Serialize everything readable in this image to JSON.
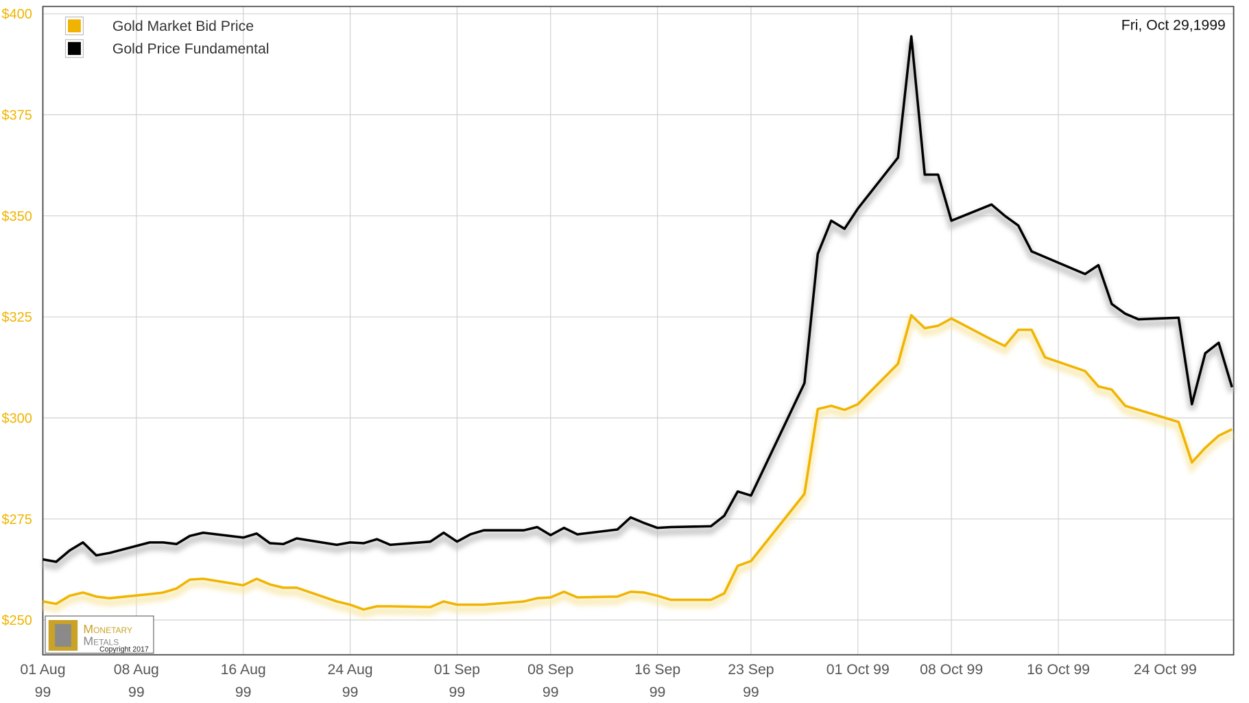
{
  "chart_data": {
    "type": "line",
    "annotation": "Fri, Oct 29,1999",
    "x": [
      "1999-08-01",
      "1999-08-02",
      "1999-08-03",
      "1999-08-04",
      "1999-08-05",
      "1999-08-06",
      "1999-08-09",
      "1999-08-10",
      "1999-08-11",
      "1999-08-12",
      "1999-08-13",
      "1999-08-16",
      "1999-08-17",
      "1999-08-18",
      "1999-08-19",
      "1999-08-20",
      "1999-08-23",
      "1999-08-24",
      "1999-08-25",
      "1999-08-26",
      "1999-08-27",
      "1999-08-30",
      "1999-08-31",
      "1999-09-01",
      "1999-09-02",
      "1999-09-03",
      "1999-09-06",
      "1999-09-07",
      "1999-09-08",
      "1999-09-09",
      "1999-09-10",
      "1999-09-13",
      "1999-09-14",
      "1999-09-15",
      "1999-09-16",
      "1999-09-17",
      "1999-09-20",
      "1999-09-21",
      "1999-09-22",
      "1999-09-23",
      "1999-09-27",
      "1999-09-28",
      "1999-09-29",
      "1999-09-30",
      "1999-10-01",
      "1999-10-04",
      "1999-10-05",
      "1999-10-06",
      "1999-10-07",
      "1999-10-08",
      "1999-10-11",
      "1999-10-12",
      "1999-10-13",
      "1999-10-14",
      "1999-10-15",
      "1999-10-18",
      "1999-10-19",
      "1999-10-20",
      "1999-10-21",
      "1999-10-22",
      "1999-10-25",
      "1999-10-26",
      "1999-10-27",
      "1999-10-28",
      "1999-10-29"
    ],
    "series": [
      {
        "name": "Gold Market Bid Price",
        "color": "#f0b400",
        "values": [
          254.6,
          254.0,
          256.0,
          256.8,
          255.8,
          255.4,
          256.4,
          256.8,
          257.8,
          260.0,
          260.2,
          258.6,
          260.2,
          258.8,
          258.0,
          258.0,
          254.6,
          253.8,
          252.6,
          253.4,
          253.4,
          253.2,
          254.6,
          253.8,
          253.8,
          253.8,
          254.6,
          255.4,
          255.6,
          257.0,
          255.6,
          255.8,
          257.0,
          256.8,
          256.0,
          255.0,
          255.0,
          256.6,
          263.4,
          264.6,
          281.2,
          302.2,
          303.0,
          302.0,
          303.4,
          313.4,
          325.4,
          322.2,
          322.8,
          324.6,
          319.4,
          317.8,
          321.8,
          321.8,
          315.0,
          311.6,
          307.8,
          307.0,
          303.0,
          302.0,
          299.0,
          289.0,
          292.6,
          295.6,
          297.2
        ]
      },
      {
        "name": "Gold Price Fundamental",
        "color": "#000000",
        "values": [
          265.0,
          264.4,
          267.2,
          269.2,
          266.0,
          266.6,
          269.2,
          269.2,
          268.8,
          270.8,
          271.6,
          270.4,
          271.4,
          269.0,
          268.8,
          270.2,
          268.6,
          269.2,
          269.0,
          270.0,
          268.6,
          269.4,
          271.6,
          269.4,
          271.2,
          272.2,
          272.2,
          273.0,
          271.0,
          272.8,
          271.2,
          272.4,
          275.4,
          274.0,
          272.8,
          273.0,
          273.2,
          275.8,
          281.8,
          280.8,
          308.6,
          340.6,
          348.8,
          346.8,
          351.8,
          364.4,
          394.4,
          360.2,
          360.2,
          348.8,
          352.8,
          350.0,
          347.6,
          341.2,
          339.8,
          335.6,
          337.8,
          328.2,
          325.8,
          324.4,
          324.8,
          303.4,
          316.0,
          318.6,
          307.6
        ]
      }
    ],
    "xlim": [
      "1999-08-01",
      "1999-10-29"
    ],
    "xticks": [
      {
        "value": "1999-08-01",
        "label": "01 Aug\n99"
      },
      {
        "value": "1999-08-08",
        "label": "08 Aug\n99"
      },
      {
        "value": "1999-08-16",
        "label": "16 Aug\n99"
      },
      {
        "value": "1999-08-24",
        "label": "24 Aug\n99"
      },
      {
        "value": "1999-09-01",
        "label": "01 Sep\n99"
      },
      {
        "value": "1999-09-08",
        "label": "08 Sep\n99"
      },
      {
        "value": "1999-09-16",
        "label": "16 Sep\n99"
      },
      {
        "value": "1999-09-23",
        "label": "23 Sep\n99"
      },
      {
        "value": "1999-10-01",
        "label": "01 Oct 99"
      },
      {
        "value": "1999-10-08",
        "label": "08 Oct 99"
      },
      {
        "value": "1999-10-16",
        "label": "16 Oct 99"
      },
      {
        "value": "1999-10-24",
        "label": "24 Oct 99"
      }
    ],
    "ylim": [
      241.4,
      401.8
    ],
    "yticks": [
      {
        "value": 250,
        "label": "$250"
      },
      {
        "value": 275,
        "label": "$275"
      },
      {
        "value": 300,
        "label": "$300"
      },
      {
        "value": 325,
        "label": "$325"
      },
      {
        "value": 350,
        "label": "$350"
      },
      {
        "value": 375,
        "label": "$375"
      },
      {
        "value": 400,
        "label": "$400"
      }
    ],
    "grid": true,
    "legend": "top-left",
    "logo": {
      "line1": "Monetary",
      "line2": "Metals",
      "copyright": "Copyright 2017"
    }
  }
}
